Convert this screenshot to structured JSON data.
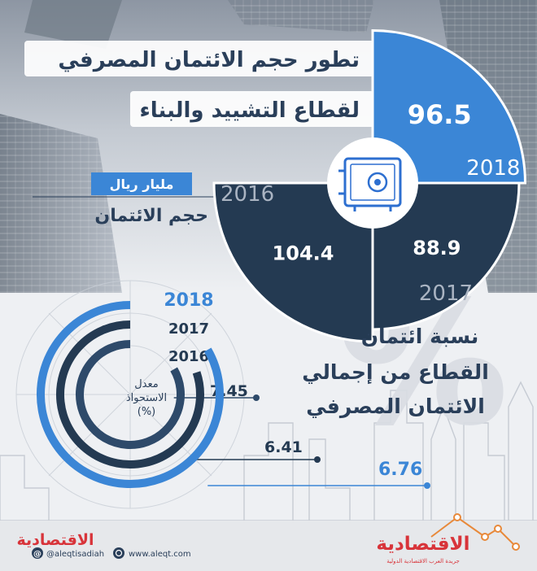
{
  "title": {
    "line1": "تطور حجم الائتمان المصرفي",
    "line2": "لقطاع التشييد والبناء"
  },
  "unit_label": "مليار ريال",
  "credit_label": "حجم الائتمان",
  "ratio_title": {
    "line1": "نسبة ائتمان",
    "line2": "القطاع من إجمالي",
    "line3": "الائتمان المصرفي"
  },
  "ratio_center": {
    "line1": "معدل",
    "line2": "الاستحواذ",
    "line3": "(%)"
  },
  "watermark": "%",
  "footer": {
    "social": "@aleqtisadiah",
    "website": "www.aleqt.com",
    "logo_left": "الاقتصادية",
    "logo_right": "الاقتصادية",
    "logo_tagline": "جريدة العرب الاقتصادية الدولية"
  },
  "colors": {
    "light_blue": "#3b86d6",
    "dark_navy": "#243a52",
    "mid_navy": "#2e4a6a",
    "logo_red": "#d8343a",
    "logo_orange": "#e8893a"
  },
  "chart_data": [
    {
      "type": "pie",
      "title": "تطور حجم الائتمان المصرفي لقطاع التشييد والبناء",
      "unit": "مليار ريال",
      "categories": [
        "2016",
        "2017",
        "2018"
      ],
      "values": [
        104.4,
        88.9,
        96.5
      ],
      "value_labels": [
        "104.4",
        "88.9",
        "96.5"
      ]
    },
    {
      "type": "bar",
      "orientation": "radial",
      "title": "نسبة ائتمان القطاع من إجمالي الائتمان المصرفي",
      "categories": [
        "2016",
        "2017",
        "2018"
      ],
      "values": [
        7.45,
        6.41,
        6.76
      ],
      "value_labels": [
        "7.45",
        "6.41",
        "6.76"
      ],
      "unit": "%"
    }
  ]
}
